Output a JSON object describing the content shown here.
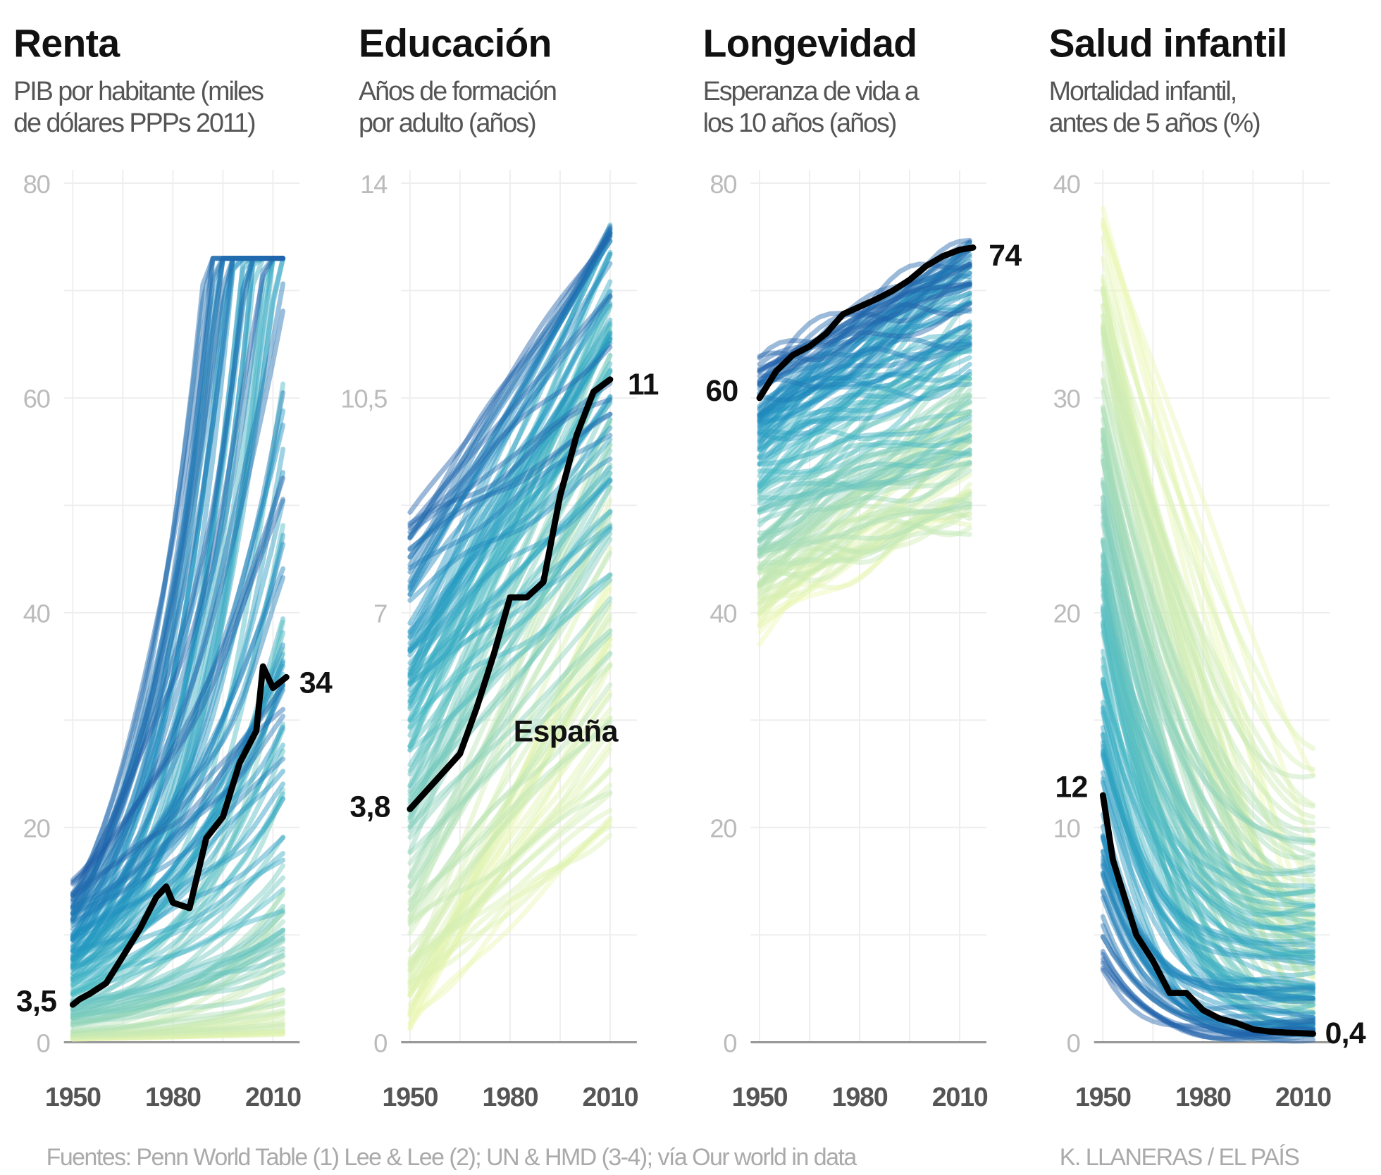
{
  "colors": {
    "spain_line": "#000000",
    "palette": [
      "#edf8b1",
      "#c7e9b4",
      "#7fcdbb",
      "#41b6c4",
      "#1d91c0",
      "#225ea8"
    ]
  },
  "footer": {
    "source": "Fuentes: Penn World Table (1) Lee & Lee (2); UN & HMD (3-4); vía Our world in data",
    "credit": "K. LLANERAS  /  EL PAÍS"
  },
  "chart_data": [
    {
      "type": "line",
      "title": "Renta",
      "subtitle": [
        "PIB por habitante (miles",
        "de dólares PPPs 2011)"
      ],
      "ylim": [
        0,
        80
      ],
      "y_ticks": [
        {
          "v": 0,
          "label": "0"
        },
        {
          "v": 20,
          "label": "20"
        },
        {
          "v": 40,
          "label": "40"
        },
        {
          "v": 60,
          "label": "60"
        },
        {
          "v": 80,
          "label": "80"
        }
      ],
      "x_ticks": [
        {
          "v": 1950,
          "label": "1950"
        },
        {
          "v": 1980,
          "label": "1980"
        },
        {
          "v": 2010,
          "label": "2010"
        }
      ],
      "grid": true,
      "series": [
        {
          "name": "España",
          "x": [
            1950,
            1952,
            1955,
            1960,
            1965,
            1970,
            1975,
            1978,
            1980,
            1985,
            1990,
            1995,
            2000,
            2005,
            2007,
            2010,
            2014
          ],
          "y": [
            3.5,
            4,
            4.5,
            5.5,
            8,
            10.5,
            13.5,
            14.5,
            13,
            12.5,
            19,
            21,
            26,
            29,
            35,
            33,
            34
          ]
        }
      ],
      "start_label": "3,5",
      "end_label": "34"
    },
    {
      "type": "line",
      "title": "Educación",
      "subtitle": [
        "Años de formación",
        "por adulto (años)"
      ],
      "ylim": [
        0,
        14
      ],
      "y_ticks": [
        {
          "v": 0,
          "label": "0"
        },
        {
          "v": 7,
          "label": "7"
        },
        {
          "v": 10.5,
          "label": "10,5"
        },
        {
          "v": 14,
          "label": "14"
        }
      ],
      "x_ticks": [
        {
          "v": 1950,
          "label": "1950"
        },
        {
          "v": 1980,
          "label": "1980"
        },
        {
          "v": 2010,
          "label": "2010"
        }
      ],
      "grid": true,
      "series": [
        {
          "name": "España",
          "x": [
            1950,
            1955,
            1960,
            1965,
            1970,
            1975,
            1980,
            1985,
            1990,
            1995,
            2000,
            2005,
            2010
          ],
          "y": [
            3.8,
            4.1,
            4.4,
            4.7,
            5.45,
            6.3,
            7.25,
            7.25,
            7.5,
            8.9,
            9.9,
            10.6,
            10.8
          ]
        }
      ],
      "start_label": "3,8",
      "end_label": "11",
      "annotation": "España"
    },
    {
      "type": "line",
      "title": "Longevidad",
      "subtitle": [
        "Esperanza de vida a",
        "los 10 años (años)"
      ],
      "ylim": [
        0,
        80
      ],
      "y_ticks": [
        {
          "v": 0,
          "label": "0"
        },
        {
          "v": 20,
          "label": "20"
        },
        {
          "v": 40,
          "label": "40"
        },
        {
          "v": 80,
          "label": "80"
        }
      ],
      "x_ticks": [
        {
          "v": 1950,
          "label": "1950"
        },
        {
          "v": 1980,
          "label": "1980"
        },
        {
          "v": 2010,
          "label": "2010"
        }
      ],
      "grid": true,
      "series": [
        {
          "name": "España",
          "x": [
            1950,
            1955,
            1960,
            1965,
            1970,
            1975,
            1980,
            1985,
            1990,
            1995,
            2000,
            2005,
            2010,
            2014
          ],
          "y": [
            60,
            62.5,
            64,
            64.8,
            66,
            67.8,
            68.5,
            69.2,
            70,
            71,
            72.3,
            73.2,
            73.8,
            74
          ]
        }
      ],
      "start_label": "60",
      "end_label": "74"
    },
    {
      "type": "line",
      "title": "Salud infantil",
      "subtitle": [
        "Mortalidad infantil,",
        "antes de 5 años (%)"
      ],
      "ylim": [
        0,
        40
      ],
      "y_ticks": [
        {
          "v": 0,
          "label": "0"
        },
        {
          "v": 10,
          "label": "10"
        },
        {
          "v": 20,
          "label": "20"
        },
        {
          "v": 30,
          "label": "30"
        },
        {
          "v": 40,
          "label": "40"
        }
      ],
      "x_ticks": [
        {
          "v": 1950,
          "label": "1950"
        },
        {
          "v": 1980,
          "label": "1980"
        },
        {
          "v": 2010,
          "label": "2010"
        }
      ],
      "grid": true,
      "series": [
        {
          "name": "España",
          "x": [
            1950,
            1953,
            1955,
            1960,
            1965,
            1970,
            1975,
            1980,
            1985,
            1990,
            1995,
            2000,
            2005,
            2013
          ],
          "y": [
            11.5,
            8.5,
            7.5,
            5,
            3.8,
            2.3,
            2.3,
            1.5,
            1.1,
            0.9,
            0.6,
            0.5,
            0.45,
            0.4
          ]
        }
      ],
      "start_label": "12",
      "end_label": "0,4"
    }
  ]
}
